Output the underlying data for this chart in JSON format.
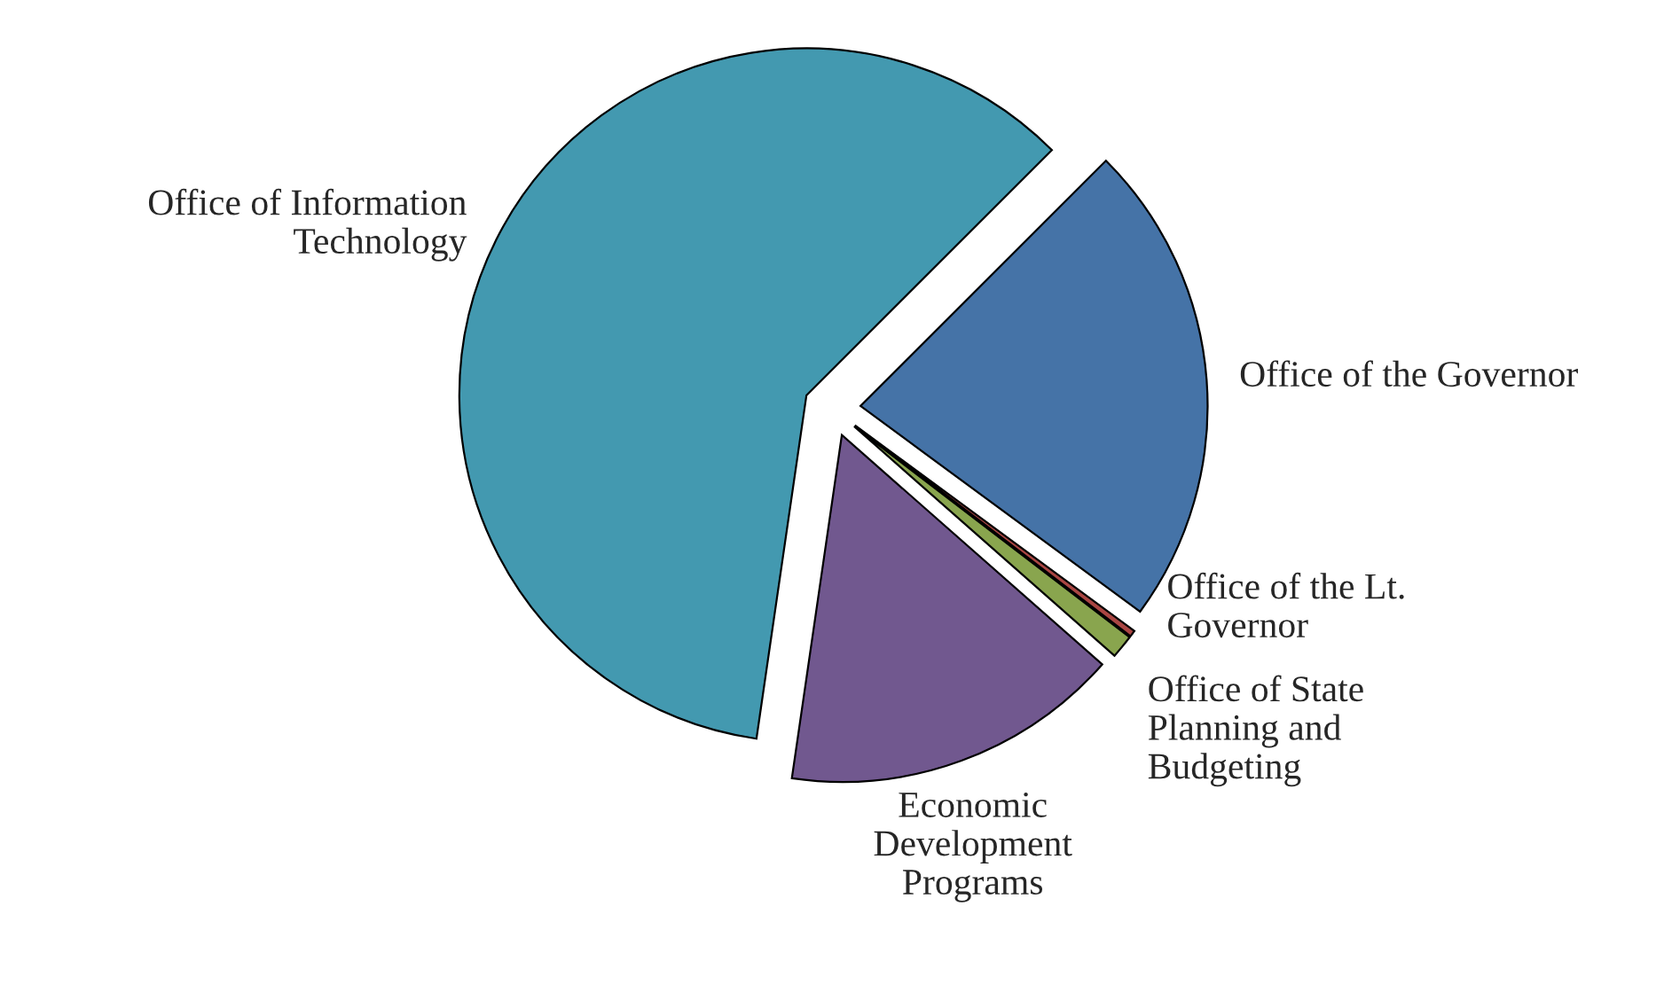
{
  "chart_data": {
    "type": "pie",
    "categories": [
      "Office of the Governor",
      "Office of the Lt.\nGovernor",
      "Office of State\nPlanning and\nBudgeting",
      "Economic\nDevelopment\nPrograms",
      "Office of Information\nTechnology"
    ],
    "values": [
      22.6,
      0.3,
      1.1,
      15.8,
      60.2
    ],
    "colors": [
      "#4573a7",
      "#aa4643",
      "#89a54e",
      "#71588f",
      "#4399b0"
    ],
    "legend": false
  }
}
